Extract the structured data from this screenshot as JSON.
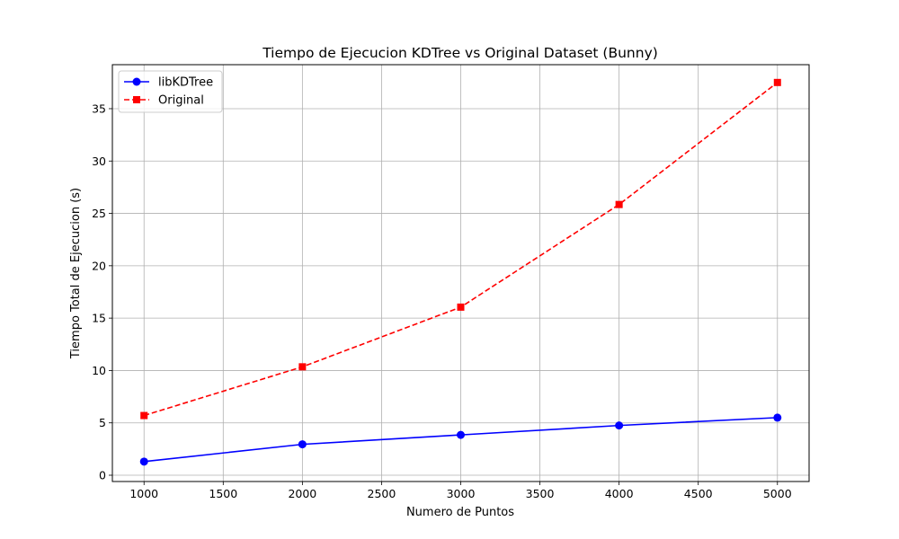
{
  "chart_data": {
    "type": "line",
    "title": "Tiempo de Ejecucion KDTree vs Original Dataset (Bunny)",
    "xlabel": "Numero de Puntos",
    "ylabel": "Tiempo Total de Ejecucion (s)",
    "x": [
      1000,
      2000,
      3000,
      4000,
      5000
    ],
    "xlim": [
      800,
      5200
    ],
    "ylim": [
      -0.6,
      39.2
    ],
    "xticks": [
      1000,
      1500,
      2000,
      2500,
      3000,
      3500,
      4000,
      4500,
      5000
    ],
    "yticks": [
      0,
      5,
      10,
      15,
      20,
      25,
      30,
      35
    ],
    "grid": true,
    "legend_position": "top-left",
    "series": [
      {
        "name": "libKDTree",
        "values": [
          1.3,
          2.95,
          3.85,
          4.75,
          5.5
        ],
        "color": "#0000ff",
        "line_style": "solid",
        "marker": "circle"
      },
      {
        "name": "Original",
        "values": [
          5.7,
          10.35,
          16.05,
          25.85,
          37.5
        ],
        "color": "#ff0000",
        "line_style": "dashed",
        "marker": "square"
      }
    ]
  }
}
